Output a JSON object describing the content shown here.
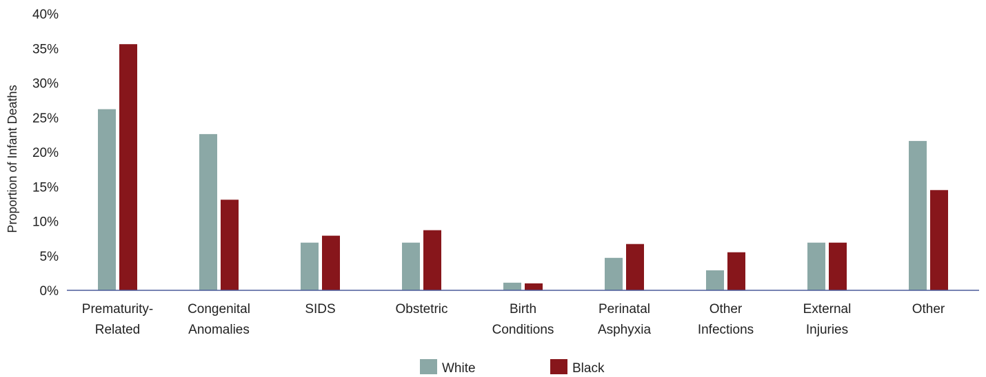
{
  "chart_data": {
    "type": "bar",
    "ylabel": "Proportion of Infant Deaths",
    "xlabel": "",
    "ylim": [
      0,
      40
    ],
    "yticks": [
      "0%",
      "5%",
      "10%",
      "15%",
      "20%",
      "25%",
      "30%",
      "35%",
      "40%"
    ],
    "categories": [
      [
        "Prematurity-",
        "Related"
      ],
      [
        "Congenital",
        "Anomalies"
      ],
      [
        "SIDS"
      ],
      [
        "Obstetric"
      ],
      [
        "Birth",
        "Conditions"
      ],
      [
        "Perinatal",
        "Asphyxia"
      ],
      [
        "Other",
        "Infections"
      ],
      [
        "External",
        "Injuries"
      ],
      [
        "Other"
      ]
    ],
    "series": [
      {
        "name": "White",
        "color": "#8ba8a6",
        "values": [
          26.2,
          22.6,
          6.9,
          6.9,
          1.1,
          4.7,
          2.9,
          6.9,
          21.6
        ]
      },
      {
        "name": "Black",
        "color": "#87161b",
        "values": [
          35.6,
          13.1,
          7.9,
          8.7,
          1.0,
          6.7,
          5.5,
          6.9,
          14.5
        ]
      }
    ],
    "axis_color": "#4a5a9a",
    "grid": false,
    "legend_position": "bottom-center"
  }
}
